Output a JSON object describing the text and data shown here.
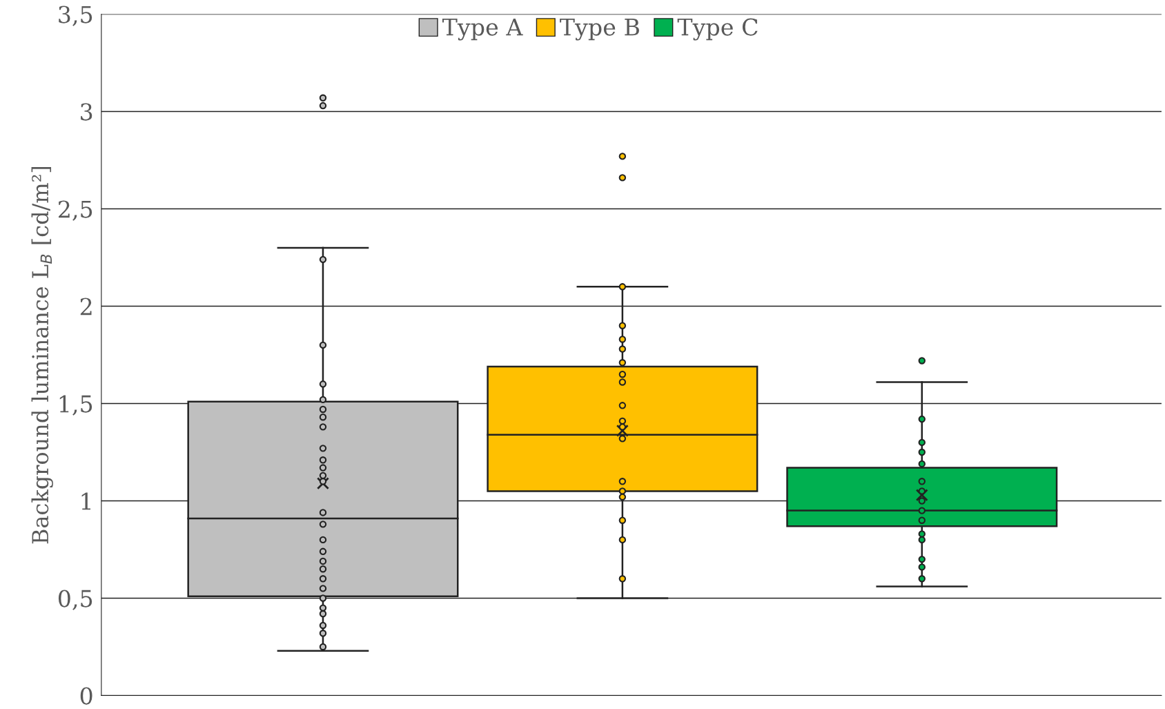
{
  "chart_data": {
    "type": "box",
    "ylabel": "Background luminance L$_{B}$ [cd/m²]",
    "categories": [
      null
    ],
    "ylim": [
      0,
      3.5
    ],
    "yticks": [
      0,
      {
        "value": 0.5,
        "label": "0,5"
      },
      1,
      {
        "value": 1.5,
        "label": "1,5"
      },
      2,
      {
        "value": 2.5,
        "label": "2,5"
      },
      3,
      {
        "value": 3.5,
        "label": "3,5"
      }
    ],
    "grid": "y",
    "legend": "top",
    "marker": "circle",
    "series": [
      {
        "name": "Type A",
        "color": "#bfbfbf",
        "boxes": [
          {
            "low": 0.23,
            "q1": 0.51,
            "median": 0.91,
            "q3": 1.51,
            "high": 2.3,
            "mean": 1.09,
            "outliers": [
              3.07,
              3.03
            ]
          }
        ]
      },
      {
        "name": "Type B",
        "color": "#ffc000",
        "boxes": [
          {
            "low": 0.5,
            "q1": 1.05,
            "median": 1.34,
            "q3": 1.69,
            "high": 2.1,
            "mean": 1.36,
            "outliers": [
              2.77,
              2.66
            ]
          }
        ]
      },
      {
        "name": "Type C",
        "color": "#00b050",
        "boxes": [
          {
            "low": 0.56,
            "q1": 0.87,
            "median": 0.95,
            "q3": 1.17,
            "high": 1.61,
            "mean": 1.03,
            "outliers": [
              1.72
            ]
          }
        ]
      },
      {
        "color": "#bfbfbf",
        "type": "scatter",
        "x": [
          null,
          null,
          null,
          null,
          null,
          null,
          null,
          null,
          null,
          null,
          null,
          null,
          null,
          null,
          null,
          null,
          null,
          null,
          null,
          null,
          null,
          null,
          null,
          null,
          null,
          null
        ],
        "values": [
          2.24,
          1.8,
          1.6,
          1.52,
          1.47,
          1.43,
          1.38,
          1.27,
          1.21,
          1.17,
          1.13,
          1.1,
          0.94,
          0.88,
          0.8,
          0.74,
          0.69,
          0.65,
          0.6,
          0.55,
          0.5,
          0.45,
          0.42,
          0.36,
          0.32,
          0.25
        ]
      },
      {
        "color": "#ffc000",
        "type": "scatter",
        "x": [
          null,
          null,
          null,
          null,
          null,
          null,
          null,
          null,
          null,
          null,
          null,
          null,
          null,
          null,
          null,
          null,
          null
        ],
        "values": [
          2.1,
          1.9,
          1.83,
          1.78,
          1.71,
          1.65,
          1.61,
          1.49,
          1.41,
          1.38,
          1.32,
          1.1,
          1.05,
          1.02,
          0.9,
          0.8,
          0.6
        ]
      },
      {
        "color": "#00b050",
        "type": "scatter",
        "x": [
          null,
          null,
          null,
          null,
          null,
          null,
          null,
          null,
          null,
          null,
          null,
          null,
          null,
          null
        ],
        "values": [
          1.42,
          1.3,
          1.25,
          1.19,
          1.1,
          1.05,
          1.0,
          0.95,
          0.9,
          0.83,
          0.8,
          0.7,
          0.66,
          0.6
        ]
      }
    ]
  }
}
